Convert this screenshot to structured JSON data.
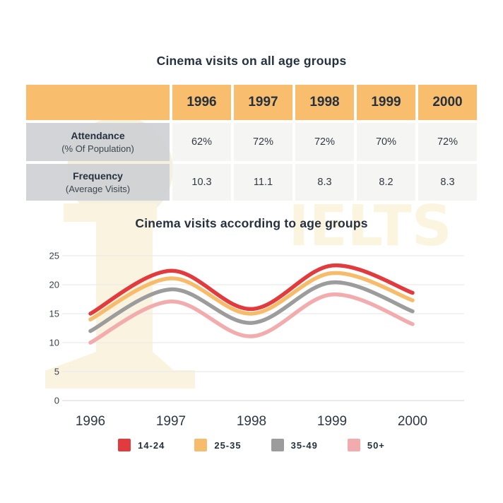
{
  "table_section": {
    "title": "Cinema visits on all age groups",
    "table": {
      "header_years": [
        "1996",
        "1997",
        "1998",
        "1999",
        "2000"
      ],
      "rows": [
        {
          "label": "Attendance",
          "sublabel": "(% Of Population)",
          "values": [
            "62%",
            "72%",
            "72%",
            "70%",
            "72%"
          ]
        },
        {
          "label": "Frequency",
          "sublabel": "(Average Visits)",
          "values": [
            "10.3",
            "11.1",
            "8.3",
            "8.2",
            "8.3"
          ]
        }
      ],
      "colors": {
        "header_bg": "#F8BD6D",
        "label_bg": "#D2D3D6",
        "value_bg": "#F3F3F2"
      }
    }
  },
  "chart_section": {
    "title": "Cinema visits according to age groups"
  },
  "chart_data": {
    "type": "line",
    "title": "Cinema visits according to age groups",
    "categories": [
      "1996",
      "1997",
      "1998",
      "1999",
      "2000"
    ],
    "series": [
      {
        "name": "14-24",
        "color": "#E23B3E",
        "values": [
          15,
          22.4,
          15.8,
          23.3,
          18.6
        ]
      },
      {
        "name": "25-35",
        "color": "#F6BC6B",
        "values": [
          14,
          21.1,
          15.0,
          22.0,
          17.3
        ]
      },
      {
        "name": "35-49",
        "color": "#9C9C9C",
        "values": [
          12,
          19.2,
          13.4,
          20.4,
          15.4
        ]
      },
      {
        "name": "50+",
        "color": "#F3ACAE",
        "values": [
          10,
          17.1,
          11.1,
          18.3,
          13.2
        ]
      }
    ],
    "ylim": [
      0,
      25
    ],
    "yticks": [
      0,
      5,
      10,
      15,
      20,
      25
    ],
    "grid": true,
    "curve": "smooth",
    "legend_position": "bottom",
    "line_width": 5.5
  },
  "watermark": {
    "text": "IELTS",
    "color": "#FBF4DF"
  }
}
